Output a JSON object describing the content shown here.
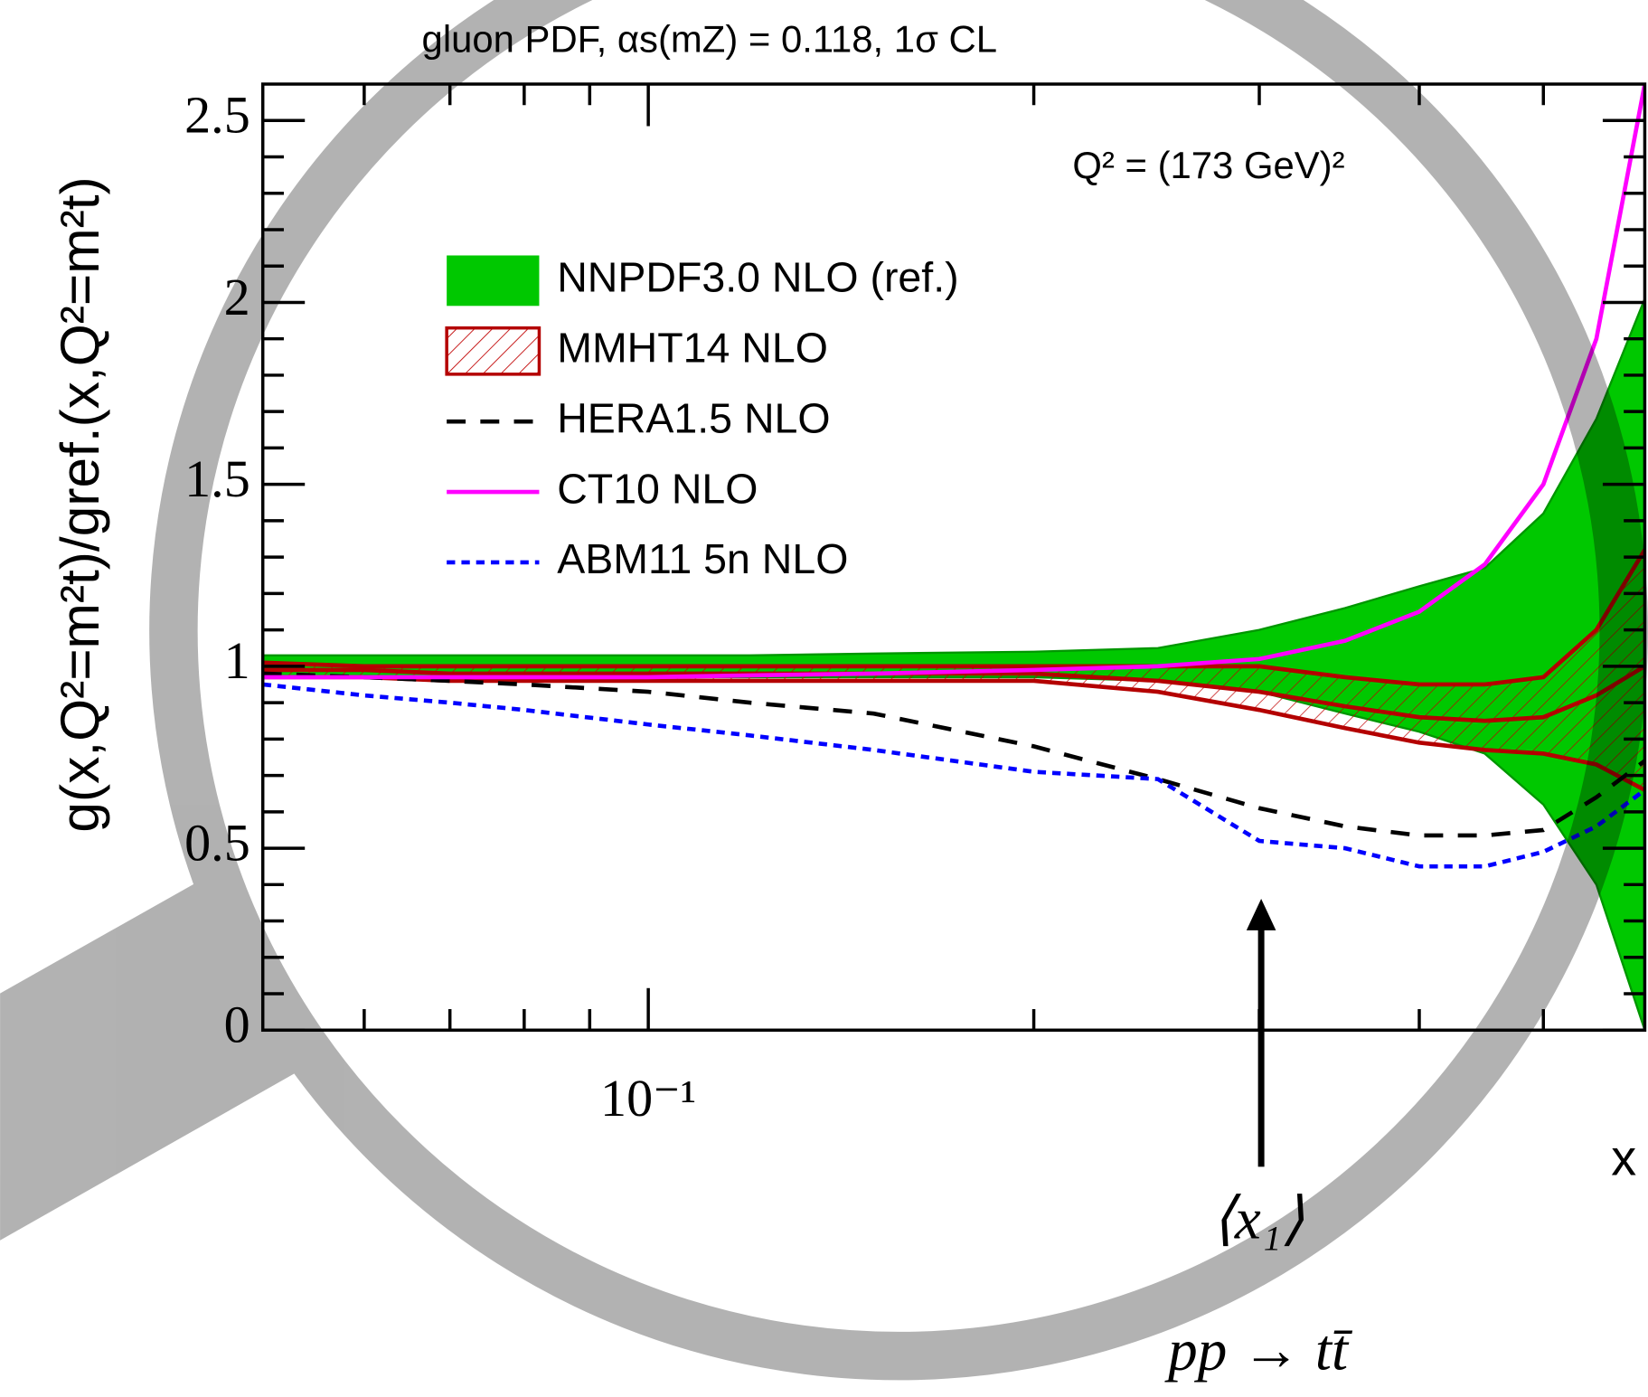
{
  "chart_data": {
    "type": "line",
    "title": "gluon PDF, αs(mZ) = 0.118, 1σ CL",
    "y_label": "g(x,Q²=m²t)/gref.(x,Q²=m²t)",
    "x_label": "x",
    "annotations": [
      "Q² = (173 GeV)²",
      "⟨x₁⟩",
      "pp → tt̄"
    ],
    "x_scale": "log",
    "xlim": [
      0.05,
      0.6
    ],
    "xticks": [
      {
        "value": 0.1,
        "label": "10⁻¹"
      }
    ],
    "xminorticks": [
      0.06,
      0.07,
      0.08,
      0.09,
      0.2,
      0.3,
      0.4,
      0.5
    ],
    "ylim": [
      0,
      2.6
    ],
    "yticks": [
      0,
      0.5,
      1,
      1.5,
      2,
      2.5
    ],
    "yminorticks": [
      0.1,
      0.2,
      0.3,
      0.4,
      0.6,
      0.7,
      0.8,
      0.9,
      1.1,
      1.2,
      1.3,
      1.4,
      1.6,
      1.7,
      1.8,
      1.9,
      2.1,
      2.2,
      2.3,
      2.4
    ],
    "legend": "upper left",
    "x": [
      0.05,
      0.06,
      0.07,
      0.08,
      0.1,
      0.12,
      0.15,
      0.2,
      0.25,
      0.3,
      0.35,
      0.4,
      0.45,
      0.5,
      0.55,
      0.6
    ],
    "series": [
      {
        "name": "NNPDF3.0 NLO (ref.)",
        "style": "band",
        "color": "#00c800",
        "upper": [
          1.03,
          1.03,
          1.03,
          1.03,
          1.03,
          1.03,
          1.035,
          1.04,
          1.05,
          1.1,
          1.16,
          1.22,
          1.27,
          1.42,
          1.68,
          2.01
        ],
        "lower": [
          0.97,
          0.97,
          0.97,
          0.97,
          0.97,
          0.97,
          0.97,
          0.97,
          0.96,
          0.93,
          0.87,
          0.82,
          0.76,
          0.62,
          0.4,
          0
        ]
      },
      {
        "name": "MMHT14 NLO",
        "style": "hatch",
        "color": "#b40000",
        "upper": [
          1.01,
          1.0,
          1.0,
          1.0,
          1.0,
          1.0,
          1.0,
          1.0,
          1.0,
          1.0,
          0.97,
          0.95,
          0.95,
          0.97,
          1.1,
          1.32
        ],
        "values": [
          0.99,
          0.99,
          0.98,
          0.98,
          0.98,
          0.98,
          0.98,
          0.98,
          0.96,
          0.93,
          0.89,
          0.86,
          0.85,
          0.86,
          0.92,
          1.0
        ],
        "lower": [
          0.97,
          0.97,
          0.96,
          0.96,
          0.96,
          0.96,
          0.96,
          0.96,
          0.93,
          0.88,
          0.83,
          0.79,
          0.77,
          0.76,
          0.73,
          0.66
        ]
      },
      {
        "name": "HERA1.5 NLO",
        "style": "dashed",
        "color": "#000000",
        "values": [
          0.98,
          0.97,
          0.96,
          0.95,
          0.93,
          0.9,
          0.87,
          0.78,
          0.69,
          0.61,
          0.56,
          0.535,
          0.535,
          0.55,
          0.64,
          0.74
        ]
      },
      {
        "name": "CT10 NLO",
        "style": "solid",
        "color": "#ff00ff",
        "values": [
          0.97,
          0.97,
          0.97,
          0.97,
          0.97,
          0.975,
          0.98,
          0.99,
          1.0,
          1.02,
          1.07,
          1.15,
          1.28,
          1.5,
          1.9,
          2.6
        ]
      },
      {
        "name": "ABM11 5n NLO",
        "style": "dotted",
        "color": "#0000ff",
        "values": [
          0.95,
          0.92,
          0.9,
          0.88,
          0.84,
          0.81,
          0.77,
          0.71,
          0.69,
          0.52,
          0.5,
          0.45,
          0.45,
          0.49,
          0.56,
          0.66
        ]
      }
    ]
  }
}
